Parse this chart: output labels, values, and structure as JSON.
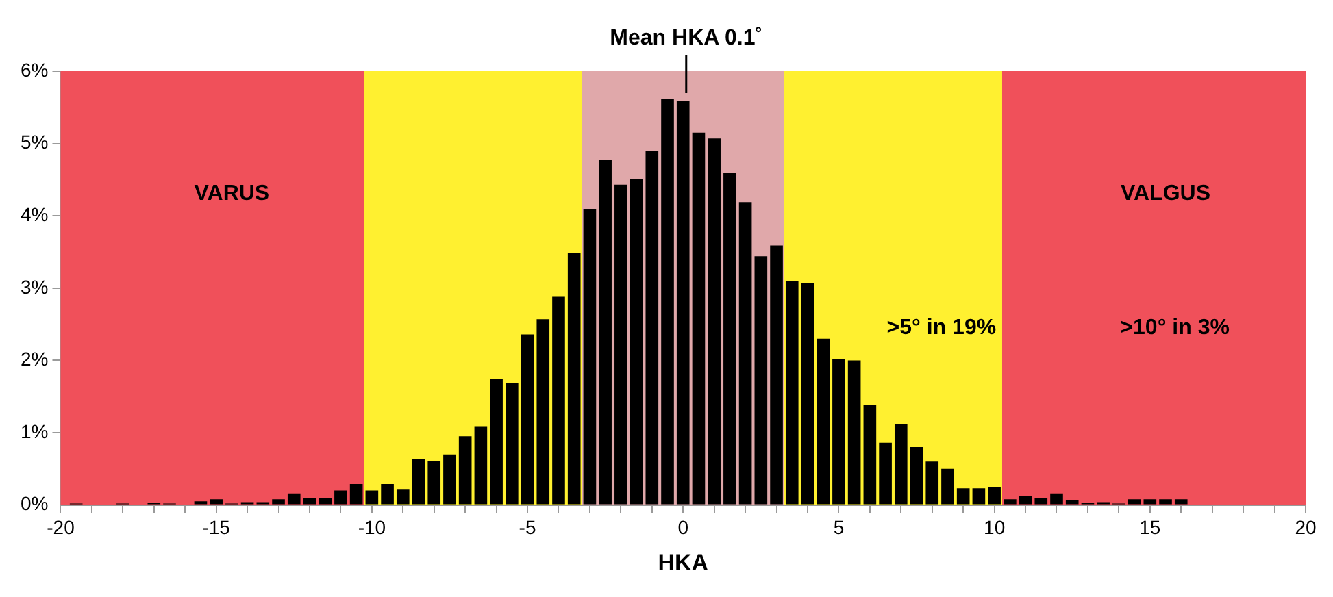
{
  "chart_data": {
    "type": "histogram",
    "xlabel": "HKA",
    "bins": [
      -19.75,
      -19.25,
      -18.75,
      -18.25,
      -17.75,
      -17.25,
      -16.75,
      -16.25,
      -15.75,
      -15.25,
      -14.75,
      -14.25,
      -13.75,
      -13.25,
      -12.75,
      -12.25,
      -11.75,
      -11.25,
      -10.75,
      -10.25,
      -9.75,
      -9.25,
      -8.75,
      -8.25,
      -7.75,
      -7.25,
      -6.75,
      -6.25,
      -5.75,
      -5.25,
      -4.75,
      -4.25,
      -3.75,
      -3.25,
      -2.75,
      -2.25,
      -1.75,
      -1.25,
      -0.75,
      -0.25,
      0.25,
      0.75,
      1.25,
      1.75,
      2.25,
      2.75,
      3.25,
      3.75,
      4.25,
      4.75,
      5.25,
      5.75,
      6.25,
      6.75,
      7.25,
      7.75,
      8.25,
      8.75,
      9.25,
      9.75,
      10.25,
      10.75,
      11.25,
      11.75,
      12.25,
      12.75,
      13.25,
      13.75,
      14.25,
      14.75,
      15.25,
      15.75,
      16.25,
      16.75,
      17.25,
      17.75,
      18.25,
      18.75,
      19.25,
      19.75
    ],
    "values": [
      0.02,
      0,
      0,
      0.02,
      0,
      0.03,
      0.02,
      0,
      0.05,
      0.08,
      0.02,
      0.04,
      0.04,
      0.08,
      0.16,
      0.1,
      0.1,
      0.2,
      0.29,
      0.2,
      0.29,
      0.22,
      0.64,
      0.61,
      0.7,
      0.95,
      1.09,
      1.74,
      1.69,
      2.36,
      2.57,
      2.88,
      3.48,
      4.09,
      4.77,
      4.43,
      4.51,
      4.9,
      5.62,
      5.59,
      5.15,
      5.07,
      4.59,
      4.19,
      3.44,
      3.59,
      3.1,
      3.07,
      2.3,
      2.02,
      2.0,
      1.38,
      0.86,
      1.12,
      0.8,
      0.6,
      0.5,
      0.23,
      0.23,
      0.25,
      0.08,
      0.12,
      0.09,
      0.16,
      0.07,
      0.03,
      0.04,
      0.02,
      0.08,
      0.08,
      0.08,
      0.08,
      0,
      0.01,
      0,
      0,
      0,
      0,
      0.01
    ],
    "color": "#000000",
    "xlim": [
      -20,
      20
    ],
    "xticks": [
      -20,
      {
        "value": -19,
        "label": null
      },
      {
        "value": -18,
        "label": null
      },
      {
        "value": -17,
        "label": null
      },
      {
        "value": -16,
        "label": null
      },
      -15,
      {
        "value": -14,
        "label": null
      },
      {
        "value": -13,
        "label": null
      },
      {
        "value": -12,
        "label": null
      },
      {
        "value": -11,
        "label": null
      },
      -10,
      {
        "value": -9,
        "label": null
      },
      {
        "value": -8,
        "label": null
      },
      {
        "value": -7,
        "label": null
      },
      {
        "value": -6,
        "label": null
      },
      -5,
      {
        "value": -4,
        "label": null
      },
      {
        "value": -3,
        "label": null
      },
      {
        "value": -2,
        "label": null
      },
      {
        "value": -1,
        "label": null
      },
      0,
      {
        "value": 1,
        "label": null
      },
      {
        "value": 2,
        "label": null
      },
      {
        "value": 3,
        "label": null
      },
      {
        "value": 4,
        "label": null
      },
      5,
      {
        "value": 6,
        "label": null
      },
      {
        "value": 7,
        "label": null
      },
      {
        "value": 8,
        "label": null
      },
      {
        "value": 9,
        "label": null
      },
      10,
      {
        "value": 11,
        "label": null
      },
      {
        "value": 12,
        "label": null
      },
      {
        "value": 13,
        "label": null
      },
      {
        "value": 14,
        "label": null
      },
      15,
      {
        "value": 16,
        "label": null
      },
      {
        "value": 17,
        "label": null
      },
      {
        "value": 18,
        "label": null
      },
      {
        "value": 19,
        "label": null
      },
      20
    ],
    "ylim": [
      0,
      6
    ],
    "yticks": [
      {
        "value": 0,
        "label": "0%"
      },
      {
        "value": 1,
        "label": "1%"
      },
      {
        "value": 2,
        "label": "2%"
      },
      {
        "value": 3,
        "label": "3%"
      },
      {
        "value": 4,
        "label": "4%"
      },
      {
        "value": 5,
        "label": "5%"
      },
      {
        "value": 6,
        "label": "6%"
      }
    ],
    "grid": false,
    "legend": false,
    "bands": [
      {
        "axis": "x",
        "from": -20,
        "to": -10.25,
        "color": "#f0505a"
      },
      {
        "axis": "x",
        "from": -10.25,
        "to": -3.25,
        "color": "#fff030"
      },
      {
        "axis": "x",
        "from": -3.25,
        "to": 3.25,
        "color": "#e0a8aa"
      },
      {
        "axis": "x",
        "from": 3.25,
        "to": 10.25,
        "color": "#fff030"
      },
      {
        "axis": "x",
        "from": 10.25,
        "to": 20,
        "color": "#f0505a"
      }
    ],
    "ref_lines": [
      {
        "axis": "x",
        "value": 0.1,
        "label": "Mean HKA 0.1˚",
        "color": "#000000"
      }
    ],
    "annotations": [
      "VARUS",
      "VALGUS",
      ">5° in 19%",
      ">10° in 3%"
    ]
  }
}
